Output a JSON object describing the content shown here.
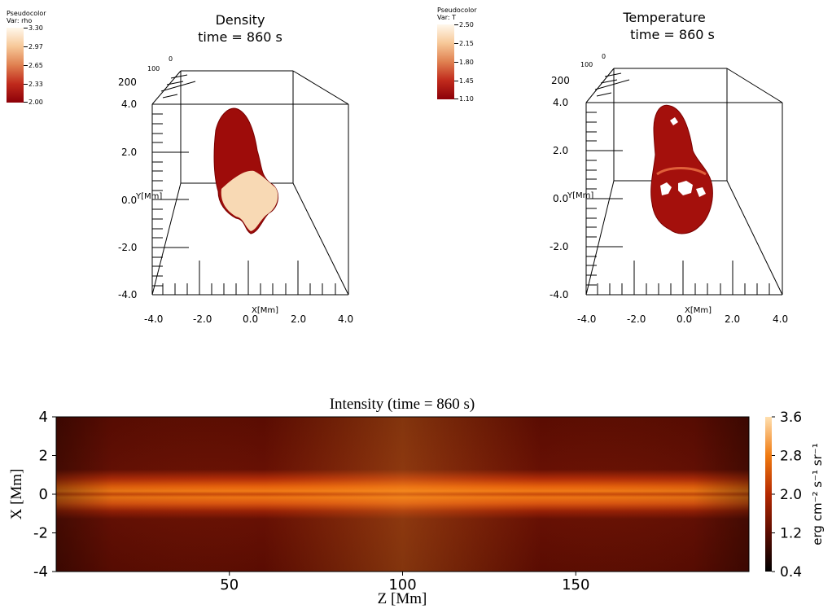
{
  "panels3d": [
    {
      "id": "density",
      "title_line1": "Density",
      "title_line2": "time = 860 s",
      "legend": {
        "line1": "Pseudocolor",
        "line2": "Var: rho",
        "ticks": [
          "3.30",
          "2.97",
          "2.65",
          "2.33",
          "2.00"
        ]
      },
      "y_ticks": [
        "4.0",
        "2.0",
        "0.0",
        "-2.0",
        "-4.0"
      ],
      "x_ticks": [
        "-4.0",
        "-2.0",
        "0.0",
        "2.0",
        "4.0"
      ],
      "z_ticks": [
        "200",
        "100",
        "0"
      ],
      "xaxis": "X[Mm]",
      "yaxis": "Y[Mm]"
    },
    {
      "id": "temperature",
      "title_line1": "Temperature",
      "title_line2": "time = 860 s",
      "legend": {
        "line1": "Pseudocolor",
        "line2": "Var: T",
        "ticks": [
          "2.50",
          "2.15",
          "1.80",
          "1.45",
          "1.10"
        ]
      },
      "y_ticks": [
        "4.0",
        "2.0",
        "0.0",
        "-2.0",
        "-4.0"
      ],
      "x_ticks": [
        "-4.0",
        "-2.0",
        "0.0",
        "2.0",
        "4.0"
      ],
      "z_ticks": [
        "200",
        "100",
        "0"
      ],
      "xaxis": "X[Mm]",
      "yaxis": "Y[Mm]"
    }
  ],
  "colors": {
    "dark_red": "#7a0000",
    "mid_red": "#b51a10",
    "orange": "#f08a1a",
    "pale": "#fff0d8"
  },
  "chart_data": {
    "type": "heatmap",
    "title": "Intensity (time =  860 s)",
    "xlabel": "Z [Mm]",
    "ylabel": "X [Mm]",
    "xlim": [
      0,
      200
    ],
    "ylim": [
      -4,
      4
    ],
    "x_ticks": [
      "50",
      "100",
      "150"
    ],
    "y_ticks": [
      "4",
      "2",
      "0",
      "-2",
      "-4"
    ],
    "colorbar": {
      "label": "erg cm⁻² s⁻¹ sr⁻¹",
      "ticks": [
        "3.6",
        "2.8",
        "2.0",
        "1.2",
        "0.4"
      ],
      "range": [
        0.4,
        3.6
      ]
    },
    "colormap": "gist_heat"
  }
}
